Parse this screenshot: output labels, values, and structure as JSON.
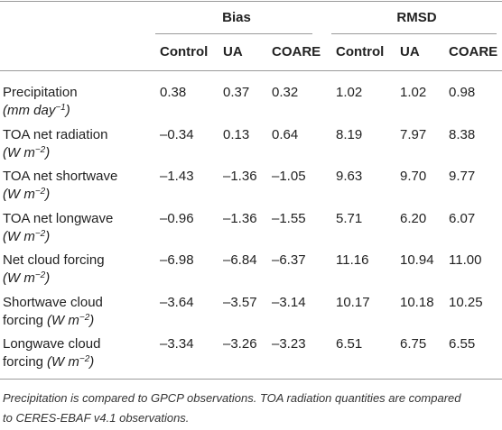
{
  "table": {
    "groups": [
      "Bias",
      "RMSD"
    ],
    "columns": [
      "Control",
      "UA",
      "COARE",
      "Control",
      "UA",
      "COARE"
    ],
    "rows": [
      {
        "label": "Precipitation",
        "unit": [
          "(mm day",
          "−1",
          ")"
        ],
        "values": [
          "0.38",
          "0.37",
          "0.32",
          "1.02",
          "1.02",
          "0.98"
        ]
      },
      {
        "label": "TOA net radiation",
        "unit": [
          "(W m",
          "−2",
          ")"
        ],
        "values": [
          "–0.34",
          "0.13",
          "0.64",
          "8.19",
          "7.97",
          "8.38"
        ]
      },
      {
        "label": "TOA net shortwave",
        "unit": [
          "(W m",
          "−2",
          ")"
        ],
        "values": [
          "–1.43",
          "–1.36",
          "–1.05",
          "9.63",
          "9.70",
          "9.77"
        ]
      },
      {
        "label": "TOA net longwave",
        "unit": [
          "(W m",
          "−2",
          ")"
        ],
        "values": [
          "–0.96",
          "–1.36",
          "–1.55",
          "5.71",
          "6.20",
          "6.07"
        ]
      },
      {
        "label": "Net cloud forcing",
        "unit": [
          "(W m",
          "−2",
          ")"
        ],
        "values": [
          "–6.98",
          "–6.84",
          "–6.37",
          "11.16",
          "10.94",
          "11.00"
        ]
      },
      {
        "label": "Shortwave cloud",
        "label_cont": "forcing",
        "unit": [
          "(W m",
          "−2",
          ")"
        ],
        "values": [
          "–3.64",
          "–3.57",
          "–3.14",
          "10.17",
          "10.18",
          "10.25"
        ]
      },
      {
        "label": "Longwave cloud",
        "label_cont": "forcing",
        "unit": [
          "(W m",
          "−2",
          ")"
        ],
        "values": [
          "–3.34",
          "–3.26",
          "–3.23",
          "6.51",
          "6.75",
          "6.55"
        ]
      }
    ],
    "footnote": [
      "Precipitation is compared to GPCP observations. TOA radiation quantities are compared",
      "to CERES-EBAF v4.1 observations."
    ]
  }
}
